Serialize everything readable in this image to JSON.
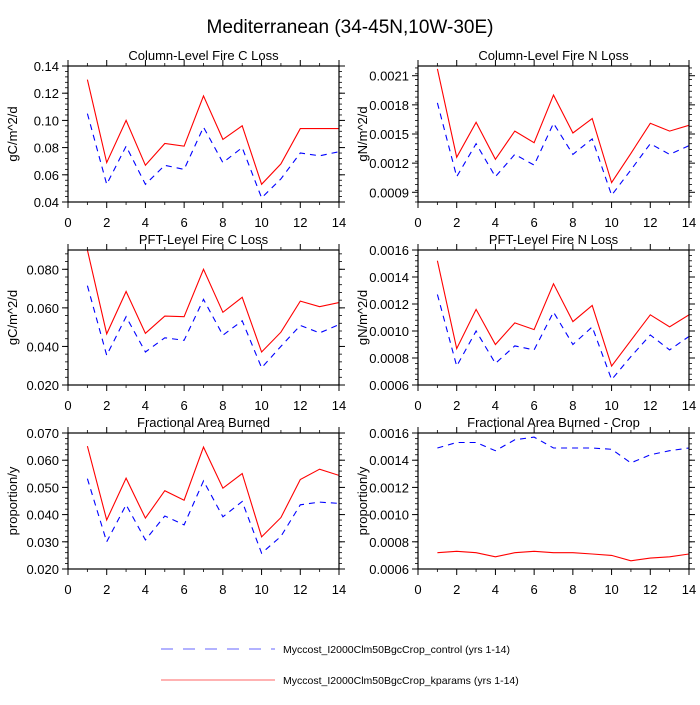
{
  "title": "Mediterranean (34-45N,10W-30E)",
  "legend": {
    "placement": "bottom",
    "entries": [
      {
        "name": "Myccost_I2000Clm50BgcCrop_control (yrs 1-14)",
        "color": "#0000ff",
        "dash": "dashed"
      },
      {
        "name": "Myccost_I2000Clm50BgcCrop_kparams (yrs 1-14)",
        "color": "#ff0000",
        "dash": "solid"
      }
    ]
  },
  "chart_data": [
    {
      "type": "line",
      "title": "Column-Level Fire C Loss",
      "ylabel": "gC/m^2/d",
      "xlim": [
        0,
        14
      ],
      "ylim": [
        0.04,
        0.14
      ],
      "xticks": [
        "0",
        "2",
        "4",
        "6",
        "8",
        "10",
        "12",
        "14"
      ],
      "yticks": [
        "0.04",
        "0.06",
        "0.08",
        "0.10",
        "0.12",
        "0.14"
      ],
      "x": [
        1,
        2,
        3,
        4,
        5,
        6,
        7,
        8,
        9,
        10,
        11,
        12,
        13,
        14
      ],
      "series": [
        {
          "name": "Myccost_I2000Clm50BgcCrop_control (yrs 1-14)",
          "values": [
            0.105,
            0.053,
            0.081,
            0.053,
            0.067,
            0.064,
            0.095,
            0.069,
            0.08,
            0.043,
            0.057,
            0.076,
            0.074,
            0.077
          ]
        },
        {
          "name": "Myccost_I2000Clm50BgcCrop_kparams (yrs 1-14)",
          "values": [
            0.13,
            0.069,
            0.1,
            0.067,
            0.083,
            0.081,
            0.118,
            0.086,
            0.096,
            0.053,
            0.068,
            0.094,
            0.094,
            0.094
          ]
        }
      ]
    },
    {
      "type": "line",
      "title": "Column-Level Fire N Loss",
      "ylabel": "gN/m^2/d",
      "xlim": [
        0,
        14
      ],
      "ylim": [
        0.0008,
        0.0022
      ],
      "xticks": [
        "0",
        "2",
        "4",
        "6",
        "8",
        "10",
        "12",
        "14"
      ],
      "yticks": [
        "0.0009",
        "0.0012",
        "0.0015",
        "0.0018",
        "0.0021"
      ],
      "x": [
        1,
        2,
        3,
        4,
        5,
        6,
        7,
        8,
        9,
        10,
        11,
        12,
        13,
        14
      ],
      "series": [
        {
          "name": "Myccost_I2000Clm50BgcCrop_control (yrs 1-14)",
          "values": [
            0.00182,
            0.00106,
            0.0014,
            0.00106,
            0.00129,
            0.00118,
            0.00161,
            0.00129,
            0.00145,
            0.00087,
            0.00113,
            0.0014,
            0.00129,
            0.00138
          ]
        },
        {
          "name": "Myccost_I2000Clm50BgcCrop_kparams (yrs 1-14)",
          "values": [
            0.00217,
            0.00126,
            0.00162,
            0.00124,
            0.00153,
            0.00141,
            0.0019,
            0.00151,
            0.00166,
            0.001,
            0.0013,
            0.00161,
            0.00153,
            0.00159
          ]
        }
      ]
    },
    {
      "type": "line",
      "title": "PFT-Level Fire C Loss",
      "ylabel": "gC/m^2/d",
      "xlim": [
        0,
        14
      ],
      "ylim": [
        0.02,
        0.09
      ],
      "xticks": [
        "0",
        "2",
        "4",
        "6",
        "8",
        "10",
        "12",
        "14"
      ],
      "yticks": [
        "0.020",
        "0.040",
        "0.060",
        "0.080"
      ],
      "x": [
        1,
        2,
        3,
        4,
        5,
        6,
        7,
        8,
        9,
        10,
        11,
        12,
        13,
        14
      ],
      "series": [
        {
          "name": "Myccost_I2000Clm50BgcCrop_control (yrs 1-14)",
          "values": [
            0.0715,
            0.0354,
            0.0554,
            0.0371,
            0.0445,
            0.0432,
            0.0644,
            0.0458,
            0.0533,
            0.0289,
            0.04,
            0.0509,
            0.047,
            0.0513
          ]
        },
        {
          "name": "Myccost_I2000Clm50BgcCrop_kparams (yrs 1-14)",
          "values": [
            0.09,
            0.0465,
            0.0685,
            0.0468,
            0.0557,
            0.0554,
            0.08,
            0.0577,
            0.0655,
            0.0371,
            0.0474,
            0.0635,
            0.0606,
            0.0627
          ]
        }
      ]
    },
    {
      "type": "line",
      "title": "PFT-Level Fire N Loss",
      "ylabel": "gN/m^2/d",
      "xlim": [
        0,
        14
      ],
      "ylim": [
        0.0006,
        0.0016
      ],
      "xticks": [
        "0",
        "2",
        "4",
        "6",
        "8",
        "10",
        "12",
        "14"
      ],
      "yticks": [
        "0.0006",
        "0.0008",
        "0.0010",
        "0.0012",
        "0.0014",
        "0.0016"
      ],
      "x": [
        1,
        2,
        3,
        4,
        5,
        6,
        7,
        8,
        9,
        10,
        11,
        12,
        13,
        14
      ],
      "series": [
        {
          "name": "Myccost_I2000Clm50BgcCrop_control (yrs 1-14)",
          "values": [
            0.00127,
            0.00074,
            0.001,
            0.00076,
            0.00089,
            0.00086,
            0.00114,
            0.0009,
            0.00103,
            0.00064,
            0.00081,
            0.00097,
            0.00086,
            0.00096
          ]
        },
        {
          "name": "Myccost_I2000Clm50BgcCrop_kparams (yrs 1-14)",
          "values": [
            0.00152,
            0.00087,
            0.00116,
            0.0009,
            0.00106,
            0.00101,
            0.00135,
            0.00107,
            0.00119,
            0.00074,
            0.00093,
            0.00112,
            0.00103,
            0.00112
          ]
        }
      ]
    },
    {
      "type": "line",
      "title": "Fractional Area Burned",
      "ylabel": "proportion/y",
      "xlim": [
        0,
        14
      ],
      "ylim": [
        0.02,
        0.07
      ],
      "xticks": [
        "0",
        "2",
        "4",
        "6",
        "8",
        "10",
        "12",
        "14"
      ],
      "yticks": [
        "0.020",
        "0.030",
        "0.040",
        "0.050",
        "0.060",
        "0.070"
      ],
      "x": [
        1,
        2,
        3,
        4,
        5,
        6,
        7,
        8,
        9,
        10,
        11,
        12,
        13,
        14
      ],
      "series": [
        {
          "name": "Myccost_I2000Clm50BgcCrop_control (yrs 1-14)",
          "values": [
            0.0532,
            0.03,
            0.0436,
            0.0307,
            0.0395,
            0.0362,
            0.0524,
            0.0392,
            0.0448,
            0.0258,
            0.032,
            0.0436,
            0.0446,
            0.0441
          ]
        },
        {
          "name": "Myccost_I2000Clm50BgcCrop_kparams (yrs 1-14)",
          "values": [
            0.0652,
            0.038,
            0.0534,
            0.0387,
            0.0488,
            0.0453,
            0.0648,
            0.0497,
            0.0551,
            0.0318,
            0.0389,
            0.0529,
            0.0567,
            0.0544
          ]
        }
      ]
    },
    {
      "type": "line",
      "title": "Fractional Area Burned - Crop",
      "ylabel": "proportion/y",
      "xlim": [
        0,
        14
      ],
      "ylim": [
        0.0006,
        0.0016
      ],
      "xticks": [
        "0",
        "2",
        "4",
        "6",
        "8",
        "10",
        "12",
        "14"
      ],
      "yticks": [
        "0.0006",
        "0.0008",
        "0.0010",
        "0.0012",
        "0.0014",
        "0.0016"
      ],
      "x": [
        1,
        2,
        3,
        4,
        5,
        6,
        7,
        8,
        9,
        10,
        11,
        12,
        13,
        14
      ],
      "series": [
        {
          "name": "Myccost_I2000Clm50BgcCrop_control (yrs 1-14)",
          "values": [
            0.00149,
            0.00153,
            0.00153,
            0.00147,
            0.00155,
            0.00157,
            0.00149,
            0.00149,
            0.00149,
            0.00148,
            0.00138,
            0.00144,
            0.00147,
            0.00149
          ]
        },
        {
          "name": "Myccost_I2000Clm50BgcCrop_kparams (yrs 1-14)",
          "values": [
            0.00072,
            0.00073,
            0.00072,
            0.00069,
            0.00072,
            0.00073,
            0.00072,
            0.00072,
            0.00071,
            0.0007,
            0.00066,
            0.00068,
            0.00069,
            0.00071
          ]
        }
      ]
    }
  ]
}
